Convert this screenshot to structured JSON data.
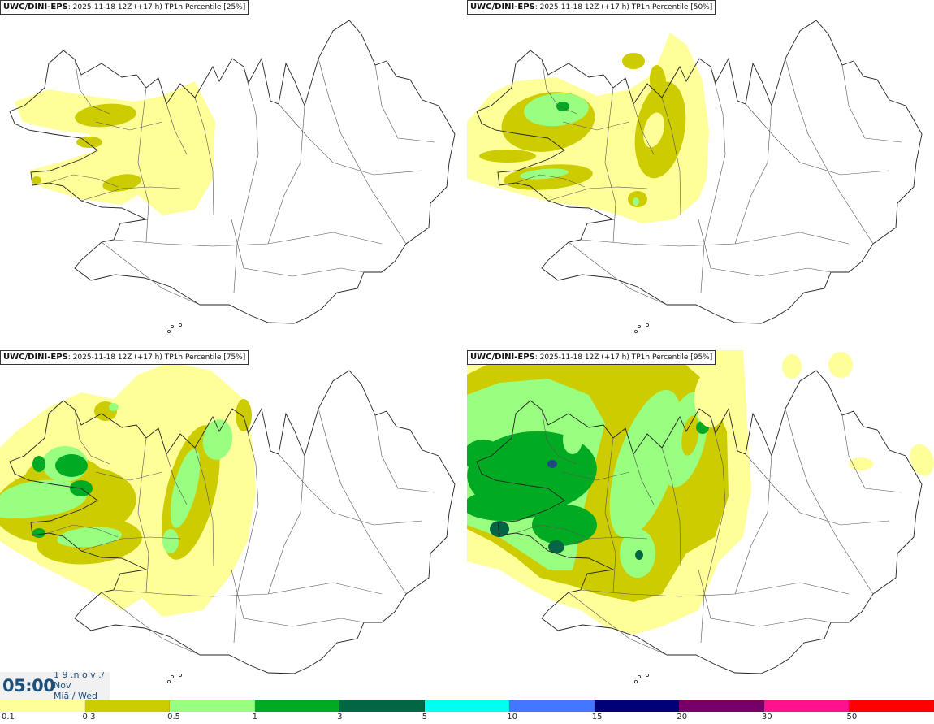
{
  "panels": [
    {
      "model": "UWC/DINI-EPS",
      "info": ": 2025-11-18 12Z (+17 h) TP1h Percentile [25%]",
      "level": 1
    },
    {
      "model": "UWC/DINI-EPS",
      "info": ": 2025-11-18 12Z (+17 h) TP1h Percentile [50%]",
      "level": 2
    },
    {
      "model": "UWC/DINI-EPS",
      "info": ": 2025-11-18 12Z (+17 h) TP1h Percentile [75%]",
      "level": 3
    },
    {
      "model": "UWC/DINI-EPS",
      "info": ": 2025-11-18 12Z (+17 h) TP1h Percentile [95%]",
      "level": 4
    }
  ],
  "time_box": {
    "time": "05:00",
    "date_lines": "1 9 .n ó v ./\nNov\nMiã / Wed"
  },
  "legend": {
    "colors": [
      "#ffff99",
      "#cccc00",
      "#99ff80",
      "#00aa22",
      "#006644",
      "#00ffee",
      "#4477ff",
      "#000077",
      "#770066",
      "#ff1190",
      "#ff0000"
    ],
    "ticks": [
      "0.1",
      "0.3",
      "0.5",
      "1",
      "3",
      "5",
      "10",
      "15",
      "20",
      "30",
      "50"
    ]
  }
}
